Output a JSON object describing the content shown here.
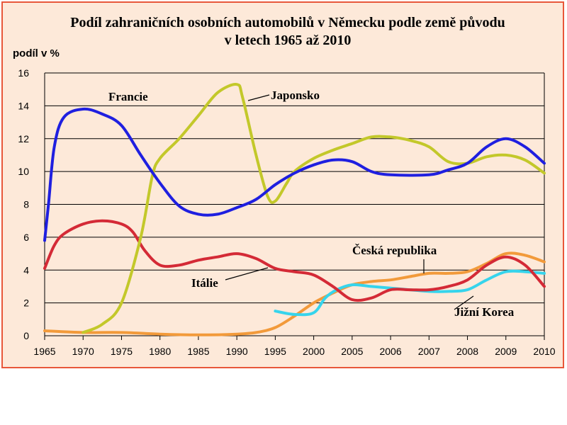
{
  "chart_data": {
    "type": "line",
    "title_line1": "Podíl zahraničních osobních automobilů v Německu podle země původu",
    "title_line2": "v letech 1965 až 2010",
    "ylabel": "podíl v %",
    "xlabel": "",
    "ylim": [
      0,
      16
    ],
    "yticks": [
      0,
      2,
      4,
      6,
      8,
      10,
      12,
      14,
      16
    ],
    "categories": [
      "1965",
      "1970",
      "1975",
      "1980",
      "1985",
      "1990",
      "1995",
      "2000",
      "2005",
      "2006",
      "2007",
      "2008",
      "2009",
      "2010"
    ],
    "grid": true,
    "series": [
      {
        "name": "Francie",
        "color": "#1f1fe0",
        "points": [
          [
            0,
            5.8
          ],
          [
            0.1,
            8
          ],
          [
            0.25,
            11.5
          ],
          [
            0.5,
            13.3
          ],
          [
            1,
            13.8
          ],
          [
            1.5,
            13.5
          ],
          [
            2,
            12.8
          ],
          [
            2.5,
            11
          ],
          [
            3,
            9.3
          ],
          [
            3.5,
            7.9
          ],
          [
            4,
            7.4
          ],
          [
            4.5,
            7.4
          ],
          [
            5,
            7.8
          ],
          [
            5.5,
            8.3
          ],
          [
            6,
            9.2
          ],
          [
            6.5,
            9.9
          ],
          [
            7,
            10.4
          ],
          [
            7.5,
            10.7
          ],
          [
            8,
            10.6
          ],
          [
            8.5,
            10.0
          ],
          [
            9,
            9.8
          ],
          [
            10,
            9.8
          ],
          [
            10.5,
            10.1
          ],
          [
            11,
            10.5
          ],
          [
            11.5,
            11.5
          ],
          [
            12,
            12.0
          ],
          [
            12.5,
            11.5
          ],
          [
            13,
            10.5
          ]
        ]
      },
      {
        "name": "Japonsko",
        "color": "#c3c82a",
        "points": [
          [
            1,
            0.2
          ],
          [
            1.5,
            0.7
          ],
          [
            2,
            2
          ],
          [
            2.5,
            6
          ],
          [
            2.8,
            9.7
          ],
          [
            3,
            10.8
          ],
          [
            3.5,
            12
          ],
          [
            4,
            13.4
          ],
          [
            4.5,
            14.8
          ],
          [
            5,
            15.3
          ],
          [
            5.15,
            14.5
          ],
          [
            5.5,
            11
          ],
          [
            5.8,
            8.5
          ],
          [
            6,
            8.2
          ],
          [
            6.3,
            9.3
          ],
          [
            6.5,
            10
          ],
          [
            7,
            10.8
          ],
          [
            7.5,
            11.3
          ],
          [
            8,
            11.7
          ],
          [
            8.5,
            12.1
          ],
          [
            9,
            12.1
          ],
          [
            9.5,
            11.9
          ],
          [
            10,
            11.5
          ],
          [
            10.5,
            10.6
          ],
          [
            11,
            10.5
          ],
          [
            11.5,
            10.9
          ],
          [
            12,
            11
          ],
          [
            12.5,
            10.7
          ],
          [
            13,
            9.9
          ]
        ]
      },
      {
        "name": "Itálie",
        "color": "#d42a36",
        "points": [
          [
            0,
            4.1
          ],
          [
            0.25,
            5.5
          ],
          [
            0.5,
            6.2
          ],
          [
            1,
            6.8
          ],
          [
            1.5,
            7.0
          ],
          [
            2,
            6.8
          ],
          [
            2.3,
            6.3
          ],
          [
            2.6,
            5.2
          ],
          [
            3,
            4.3
          ],
          [
            3.5,
            4.3
          ],
          [
            4,
            4.6
          ],
          [
            4.5,
            4.8
          ],
          [
            5,
            5.0
          ],
          [
            5.5,
            4.7
          ],
          [
            6,
            4.1
          ],
          [
            6.5,
            3.9
          ],
          [
            7,
            3.7
          ],
          [
            7.5,
            3.0
          ],
          [
            8,
            2.2
          ],
          [
            8.5,
            2.3
          ],
          [
            9,
            2.8
          ],
          [
            9.5,
            2.8
          ],
          [
            10,
            2.8
          ],
          [
            10.5,
            3.0
          ],
          [
            11,
            3.4
          ],
          [
            11.5,
            4.3
          ],
          [
            12,
            4.8
          ],
          [
            12.5,
            4.3
          ],
          [
            13,
            3.0
          ]
        ]
      },
      {
        "name": "Česká republika",
        "color": "#f29a3a",
        "points": [
          [
            0,
            0.3
          ],
          [
            1,
            0.2
          ],
          [
            2,
            0.2
          ],
          [
            3,
            0.1
          ],
          [
            4,
            0.05
          ],
          [
            5,
            0.1
          ],
          [
            5.5,
            0.2
          ],
          [
            6,
            0.5
          ],
          [
            6.5,
            1.2
          ],
          [
            7,
            2.0
          ],
          [
            7.5,
            2.6
          ],
          [
            8,
            3.1
          ],
          [
            8.5,
            3.3
          ],
          [
            9,
            3.4
          ],
          [
            9.5,
            3.6
          ],
          [
            10,
            3.8
          ],
          [
            10.5,
            3.8
          ],
          [
            11,
            3.9
          ],
          [
            11.5,
            4.4
          ],
          [
            12,
            5.0
          ],
          [
            12.5,
            4.9
          ],
          [
            13,
            4.5
          ]
        ]
      },
      {
        "name": "Jižní Korea",
        "color": "#36d4ec",
        "points": [
          [
            6,
            1.5
          ],
          [
            6.5,
            1.3
          ],
          [
            7,
            1.4
          ],
          [
            7.3,
            2.3
          ],
          [
            7.6,
            2.8
          ],
          [
            8,
            3.1
          ],
          [
            8.5,
            3.0
          ],
          [
            9,
            2.9
          ],
          [
            9.5,
            2.8
          ],
          [
            10,
            2.7
          ],
          [
            10.5,
            2.7
          ],
          [
            11,
            2.8
          ],
          [
            11.5,
            3.4
          ],
          [
            12,
            3.9
          ],
          [
            12.5,
            3.9
          ],
          [
            13,
            3.8
          ]
        ]
      }
    ]
  }
}
